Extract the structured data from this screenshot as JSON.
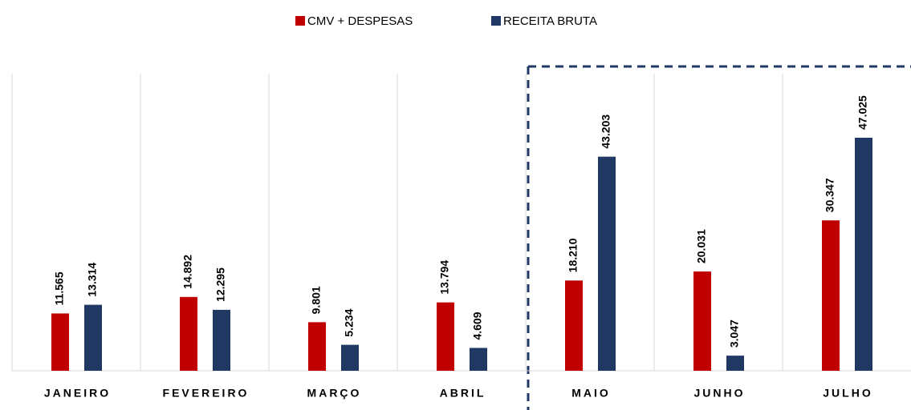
{
  "chart_data": {
    "type": "bar",
    "categories": [
      "JANEIRO",
      "FEVEREIRO",
      "MARÇO",
      "ABRIL",
      "MAIO",
      "JUNHO",
      "JULHO"
    ],
    "series": [
      {
        "name": "CMV + DESPESAS",
        "color": "#c00000",
        "values": [
          11565,
          14892,
          9801,
          13794,
          18210,
          20031,
          30347
        ],
        "value_labels": [
          "11.565",
          "14.892",
          "9.801",
          "13.794",
          "18.210",
          "20.031",
          "30.347"
        ]
      },
      {
        "name": "RECEITA BRUTA",
        "color": "#1f3864",
        "values": [
          13314,
          12295,
          5234,
          4609,
          43203,
          3047,
          47025
        ],
        "value_labels": [
          "13.314",
          "12.295",
          "5.234",
          "4.609",
          "43.203",
          "3.047",
          "47.025"
        ]
      }
    ],
    "legend": "top"
  }
}
